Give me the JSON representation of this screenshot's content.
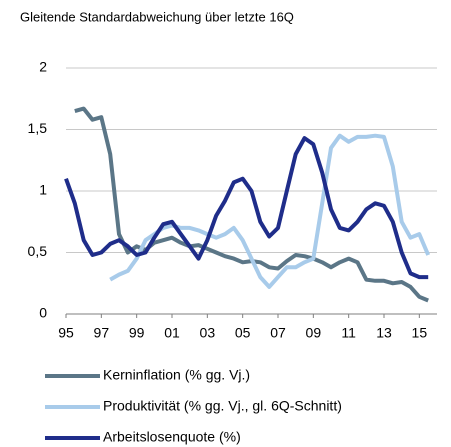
{
  "chart_data": {
    "type": "line",
    "title": "Gleitende Standardabweichung über letzte 16Q",
    "x": [
      1995,
      1995.5,
      1996,
      1996.5,
      1997,
      1997.5,
      1998,
      1998.5,
      1999,
      1999.5,
      2000,
      2000.5,
      2001,
      2001.5,
      2002,
      2002.5,
      2003,
      2003.5,
      2004,
      2004.5,
      2005,
      2005.5,
      2006,
      2006.5,
      2007,
      2007.5,
      2008,
      2008.5,
      2009,
      2009.5,
      2010,
      2010.5,
      2011,
      2011.5,
      2012,
      2012.5,
      2013,
      2013.5,
      2014,
      2014.5,
      2015,
      2015.5
    ],
    "series": [
      {
        "name": "Kerninflation (% gg. Vj.)",
        "color": "#5b7687",
        "values": [
          null,
          1.65,
          1.67,
          1.58,
          1.6,
          1.3,
          0.65,
          0.5,
          0.55,
          0.52,
          0.58,
          0.6,
          0.62,
          0.58,
          0.55,
          0.56,
          0.53,
          0.5,
          0.47,
          0.45,
          0.42,
          0.43,
          0.42,
          0.38,
          0.37,
          0.43,
          0.48,
          0.47,
          0.45,
          0.42,
          0.38,
          0.42,
          0.45,
          0.42,
          0.28,
          0.27,
          0.27,
          0.25,
          0.26,
          0.22,
          0.14,
          0.11
        ]
      },
      {
        "name": "Produktivität (% gg. Vj., gl. 6Q-Schnitt)",
        "color": "#a8cbea",
        "values": [
          null,
          null,
          null,
          null,
          null,
          0.28,
          0.32,
          0.35,
          0.45,
          0.6,
          0.65,
          0.7,
          0.72,
          0.7,
          0.7,
          0.68,
          0.65,
          0.62,
          0.65,
          0.7,
          0.6,
          0.45,
          0.3,
          0.22,
          0.3,
          0.38,
          0.38,
          0.42,
          0.45,
          0.9,
          1.35,
          1.45,
          1.4,
          1.44,
          1.44,
          1.45,
          1.44,
          1.2,
          0.75,
          0.62,
          0.65,
          0.48
        ]
      },
      {
        "name": "Arbeitslosenquote (%)",
        "color": "#1f2d8a",
        "values": [
          1.1,
          0.9,
          0.6,
          0.48,
          0.5,
          0.57,
          0.6,
          0.55,
          0.48,
          0.5,
          0.62,
          0.73,
          0.75,
          0.65,
          0.55,
          0.45,
          0.6,
          0.8,
          0.92,
          1.07,
          1.1,
          1.0,
          0.75,
          0.63,
          0.7,
          1.0,
          1.3,
          1.43,
          1.38,
          1.15,
          0.85,
          0.7,
          0.68,
          0.75,
          0.85,
          0.9,
          0.88,
          0.75,
          0.5,
          0.33,
          0.3,
          0.3
        ]
      }
    ],
    "xlim": [
      1995,
      2016
    ],
    "xticks": [
      {
        "value": 1995,
        "label": "95"
      },
      {
        "value": 1997,
        "label": "97"
      },
      {
        "value": 1999,
        "label": "99"
      },
      {
        "value": 2001,
        "label": "01"
      },
      {
        "value": 2003,
        "label": "03"
      },
      {
        "value": 2005,
        "label": "05"
      },
      {
        "value": 2007,
        "label": "07"
      },
      {
        "value": 2009,
        "label": "09"
      },
      {
        "value": 2011,
        "label": "11"
      },
      {
        "value": 2013,
        "label": "13"
      },
      {
        "value": 2015,
        "label": "15"
      }
    ],
    "ylim": [
      0,
      2
    ],
    "yticks": [
      0,
      {
        "value": 0.5,
        "label": "0,5"
      },
      1,
      {
        "value": 1.5,
        "label": "1,5"
      },
      2
    ],
    "grid": true,
    "legend": "bottom"
  }
}
